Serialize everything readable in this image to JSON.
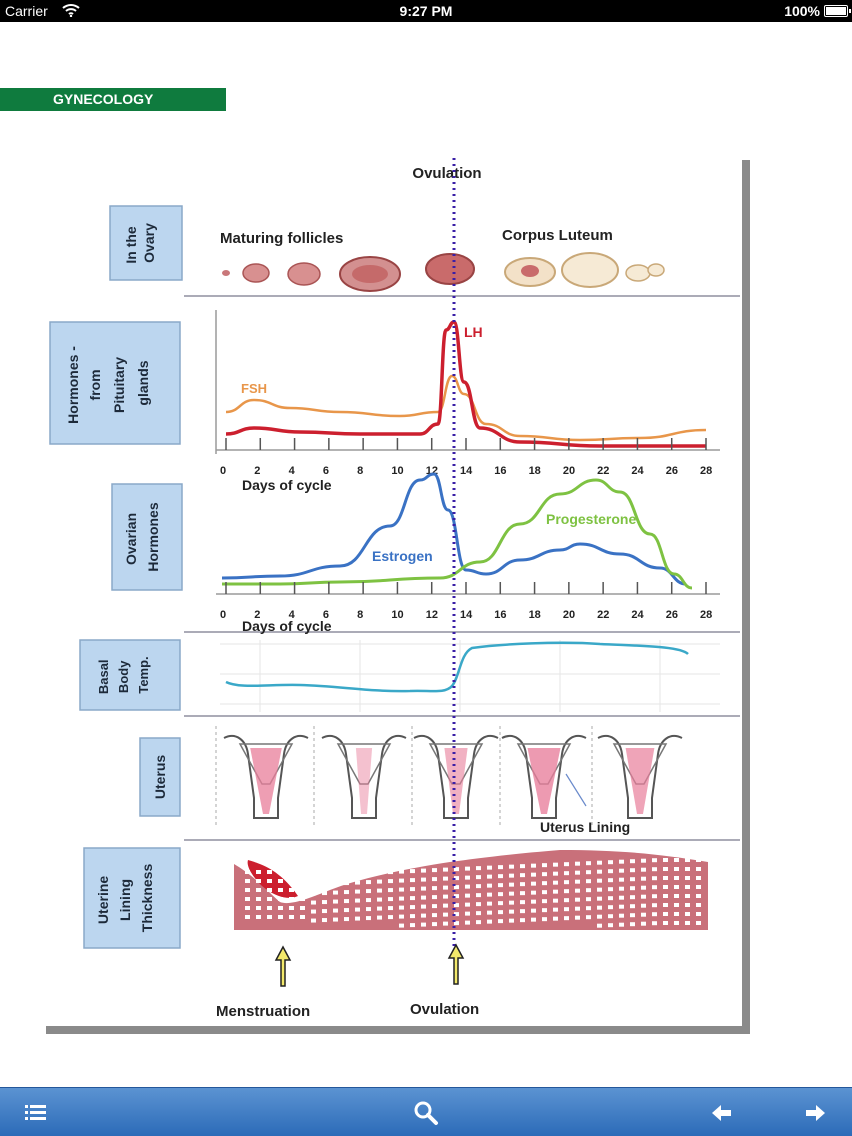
{
  "status_bar": {
    "carrier": "Carrier",
    "time": "9:27 PM",
    "battery": "100%"
  },
  "section": {
    "title": "GYNECOLOGY"
  },
  "figure": {
    "ovulation_top": "Ovulation",
    "rows": [
      {
        "label_lines": [
          "In the",
          "Ovary"
        ]
      },
      {
        "label_lines": [
          "Hormones -",
          "from",
          "Pituitary",
          "glands"
        ]
      },
      {
        "label_lines": [
          "Ovarian",
          "Hormones"
        ]
      },
      {
        "label_lines": [
          "Basal",
          "Body",
          "Temp."
        ]
      },
      {
        "label_lines": [
          "Uterus"
        ]
      },
      {
        "label_lines": [
          "Uterine",
          "Lining",
          "Thickness"
        ]
      }
    ],
    "ovary": {
      "left_label": "Maturing follicles",
      "right_label": "Corpus Luteum"
    },
    "pituitary": {
      "fsh_label": "FSH",
      "lh_label": "LH"
    },
    "ovarian": {
      "estrogen_label": "Estrogen",
      "progesterone_label": "Progesterone"
    },
    "axis_title": "Days of cycle",
    "ticks": [
      "0",
      "2",
      "4",
      "6",
      "8",
      "10",
      "12",
      "14",
      "16",
      "18",
      "20",
      "22",
      "24",
      "26",
      "28"
    ],
    "uterus_lining_label": "Uterus Lining",
    "menstruation_label": "Menstruation",
    "ovulation_bottom": "Ovulation",
    "colors": {
      "fsh": "#e8964a",
      "lh": "#cc1f2e",
      "estrogen": "#3a72c4",
      "progesterone": "#7ec242",
      "bbt": "#3aa8c8",
      "lining": "#c9707a",
      "label_box": "#bcd6ef"
    }
  },
  "toolbar": {
    "icons": [
      "list-icon",
      "search-icon",
      "back-arrow-icon",
      "forward-arrow-icon"
    ]
  }
}
